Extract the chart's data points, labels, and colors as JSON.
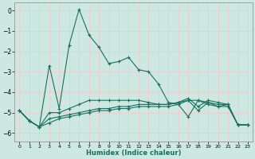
{
  "xlabel": "Humidex (Indice chaleur)",
  "xlim": [
    -0.5,
    23.5
  ],
  "ylim": [
    -6.4,
    0.4
  ],
  "yticks": [
    0,
    -1,
    -2,
    -3,
    -4,
    -5,
    -6
  ],
  "xticks": [
    0,
    1,
    2,
    3,
    4,
    5,
    6,
    7,
    8,
    9,
    10,
    11,
    12,
    13,
    14,
    15,
    16,
    17,
    18,
    19,
    20,
    21,
    22,
    23
  ],
  "bg_color": "#cce8e0",
  "grid_major_color": "#f0c8c8",
  "grid_minor_color": "#cce8e0",
  "line_color": "#1a7060",
  "lines": [
    {
      "x": [
        0,
        1,
        2,
        3,
        4,
        5,
        6,
        7,
        8,
        9,
        10,
        11,
        12,
        13,
        14,
        15,
        16,
        17,
        18,
        19,
        20,
        21,
        22,
        23
      ],
      "y": [
        -4.9,
        -5.4,
        -5.7,
        -2.7,
        -4.8,
        -1.7,
        0.05,
        -1.2,
        -1.8,
        -2.6,
        -2.5,
        -2.3,
        -2.9,
        -3.0,
        -3.6,
        -4.5,
        -4.6,
        -5.2,
        -4.4,
        -4.6,
        -4.7,
        -4.6,
        -5.6,
        -5.6
      ]
    },
    {
      "x": [
        0,
        1,
        2,
        3,
        4,
        5,
        6,
        7,
        8,
        9,
        10,
        11,
        12,
        13,
        14,
        15,
        16,
        17,
        18,
        19,
        20,
        21,
        22,
        23
      ],
      "y": [
        -4.9,
        -5.4,
        -5.7,
        -5.0,
        -5.0,
        -4.8,
        -4.6,
        -4.4,
        -4.4,
        -4.4,
        -4.4,
        -4.4,
        -4.4,
        -4.5,
        -4.6,
        -4.6,
        -4.5,
        -4.4,
        -4.4,
        -4.5,
        -4.6,
        -4.6,
        -5.6,
        -5.6
      ]
    },
    {
      "x": [
        0,
        1,
        2,
        3,
        4,
        5,
        6,
        7,
        8,
        9,
        10,
        11,
        12,
        13,
        14,
        15,
        16,
        17,
        18,
        19,
        20,
        21,
        22,
        23
      ],
      "y": [
        -4.9,
        -5.4,
        -5.7,
        -5.3,
        -5.2,
        -5.1,
        -5.0,
        -4.9,
        -4.8,
        -4.8,
        -4.7,
        -4.7,
        -4.6,
        -4.6,
        -4.6,
        -4.6,
        -4.5,
        -4.3,
        -4.7,
        -4.4,
        -4.5,
        -4.6,
        -5.6,
        -5.6
      ]
    },
    {
      "x": [
        0,
        1,
        2,
        3,
        4,
        5,
        6,
        7,
        8,
        9,
        10,
        11,
        12,
        13,
        14,
        15,
        16,
        17,
        18,
        19,
        20,
        21,
        22,
        23
      ],
      "y": [
        -4.9,
        -5.4,
        -5.7,
        -5.5,
        -5.3,
        -5.2,
        -5.1,
        -5.0,
        -4.9,
        -4.9,
        -4.8,
        -4.8,
        -4.7,
        -4.7,
        -4.7,
        -4.7,
        -4.6,
        -4.4,
        -4.9,
        -4.5,
        -4.7,
        -4.7,
        -5.6,
        -5.6
      ]
    }
  ]
}
